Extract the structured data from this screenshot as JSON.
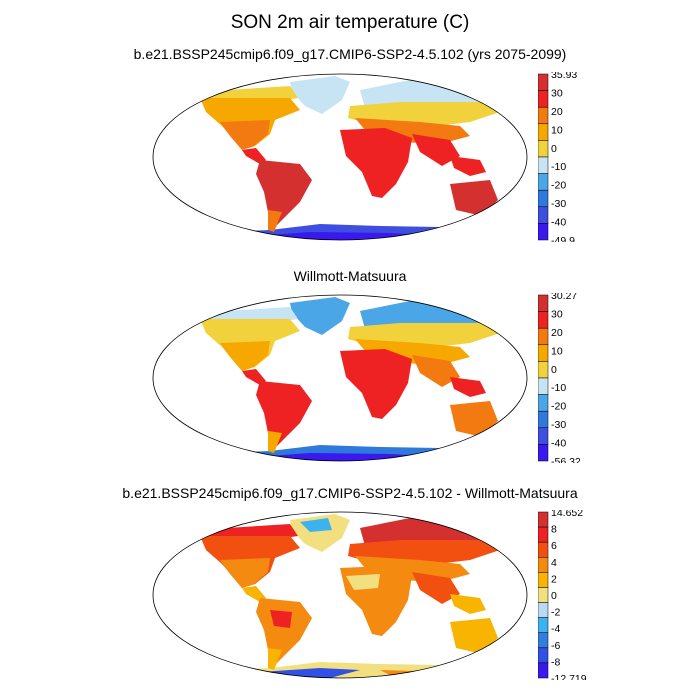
{
  "main_title": "SON 2m air temperature (C)",
  "panels": [
    {
      "title": "b.e21.BSSP245cmip6.f09_g17.CMIP6-SSP2-4.5.102 (yrs 2075-2099)",
      "colorbar": {
        "labels": [
          "35.93",
          "30",
          "20",
          "10",
          "0",
          "-10",
          "-20",
          "-30",
          "-40",
          "-49.9"
        ],
        "colors": [
          "#d43030",
          "#ee2222",
          "#f27a10",
          "#f7a800",
          "#f2d23c",
          "#c6e4f4",
          "#4aa6e6",
          "#2f78dc",
          "#3e4fe0",
          "#3a18f0"
        ]
      }
    },
    {
      "title": "Willmott-Matsuura",
      "colorbar": {
        "labels": [
          "30.27",
          "30",
          "20",
          "10",
          "0",
          "-10",
          "-20",
          "-30",
          "-40",
          "-56.32"
        ],
        "colors": [
          "#d43030",
          "#ee2222",
          "#f27a10",
          "#f7a800",
          "#f2d23c",
          "#c6e4f4",
          "#4aa6e6",
          "#2f78dc",
          "#3e4fe0",
          "#3a18f0"
        ]
      }
    },
    {
      "title": "b.e21.BSSP245cmip6.f09_g17.CMIP6-SSP2-4.5.102 - Willmott-Matsuura",
      "colorbar": {
        "labels": [
          "14.652",
          "8",
          "6",
          "4",
          "2",
          "0",
          "-2",
          "-4",
          "-6",
          "-8",
          "-12.719"
        ],
        "colors": [
          "#d43030",
          "#ee2222",
          "#f25010",
          "#f58a10",
          "#f8b400",
          "#f2e080",
          "#b8daf4",
          "#3cb2ee",
          "#2f7ee0",
          "#3050e6",
          "#3a18f0"
        ]
      }
    }
  ]
}
